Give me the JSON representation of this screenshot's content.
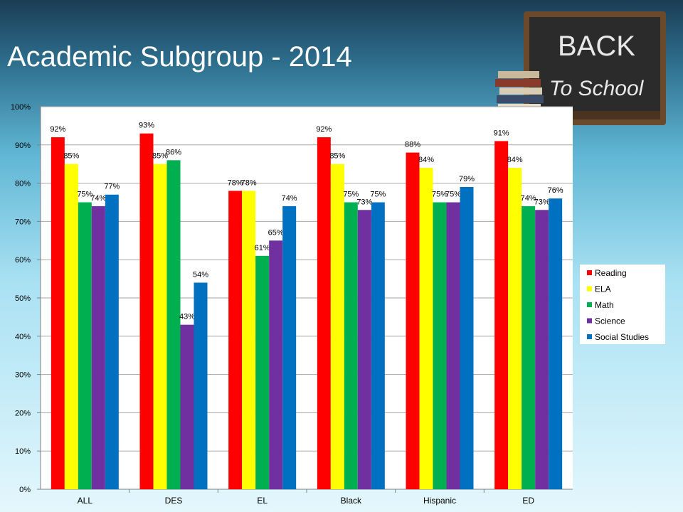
{
  "slide": {
    "title": "Academic Subgroup - 2014"
  },
  "decoration": {
    "board_text_line1": "BACK",
    "board_text_line2": "To School"
  },
  "chart_data": {
    "type": "bar",
    "categories": [
      "ALL",
      "DES",
      "EL",
      "Black",
      "Hispanic",
      "ED"
    ],
    "series": [
      {
        "name": "Reading",
        "color": "#ff0000",
        "values": [
          92,
          93,
          78,
          92,
          88,
          91
        ]
      },
      {
        "name": "ELA",
        "color": "#ffff00",
        "values": [
          85,
          85,
          78,
          85,
          84,
          84
        ]
      },
      {
        "name": "Math",
        "color": "#00b050",
        "values": [
          75,
          86,
          61,
          75,
          75,
          74
        ]
      },
      {
        "name": "Science",
        "color": "#7030a0",
        "values": [
          74,
          43,
          65,
          73,
          75,
          73
        ]
      },
      {
        "name": "Social Studies",
        "color": "#0070c0",
        "values": [
          77,
          54,
          74,
          75,
          79,
          76
        ]
      }
    ],
    "yticks": [
      "0%",
      "10%",
      "20%",
      "30%",
      "40%",
      "50%",
      "60%",
      "70%",
      "80%",
      "90%",
      "100%"
    ],
    "ylim": [
      0,
      100
    ],
    "value_suffix": "%",
    "legend_position": "right",
    "grid": true
  }
}
